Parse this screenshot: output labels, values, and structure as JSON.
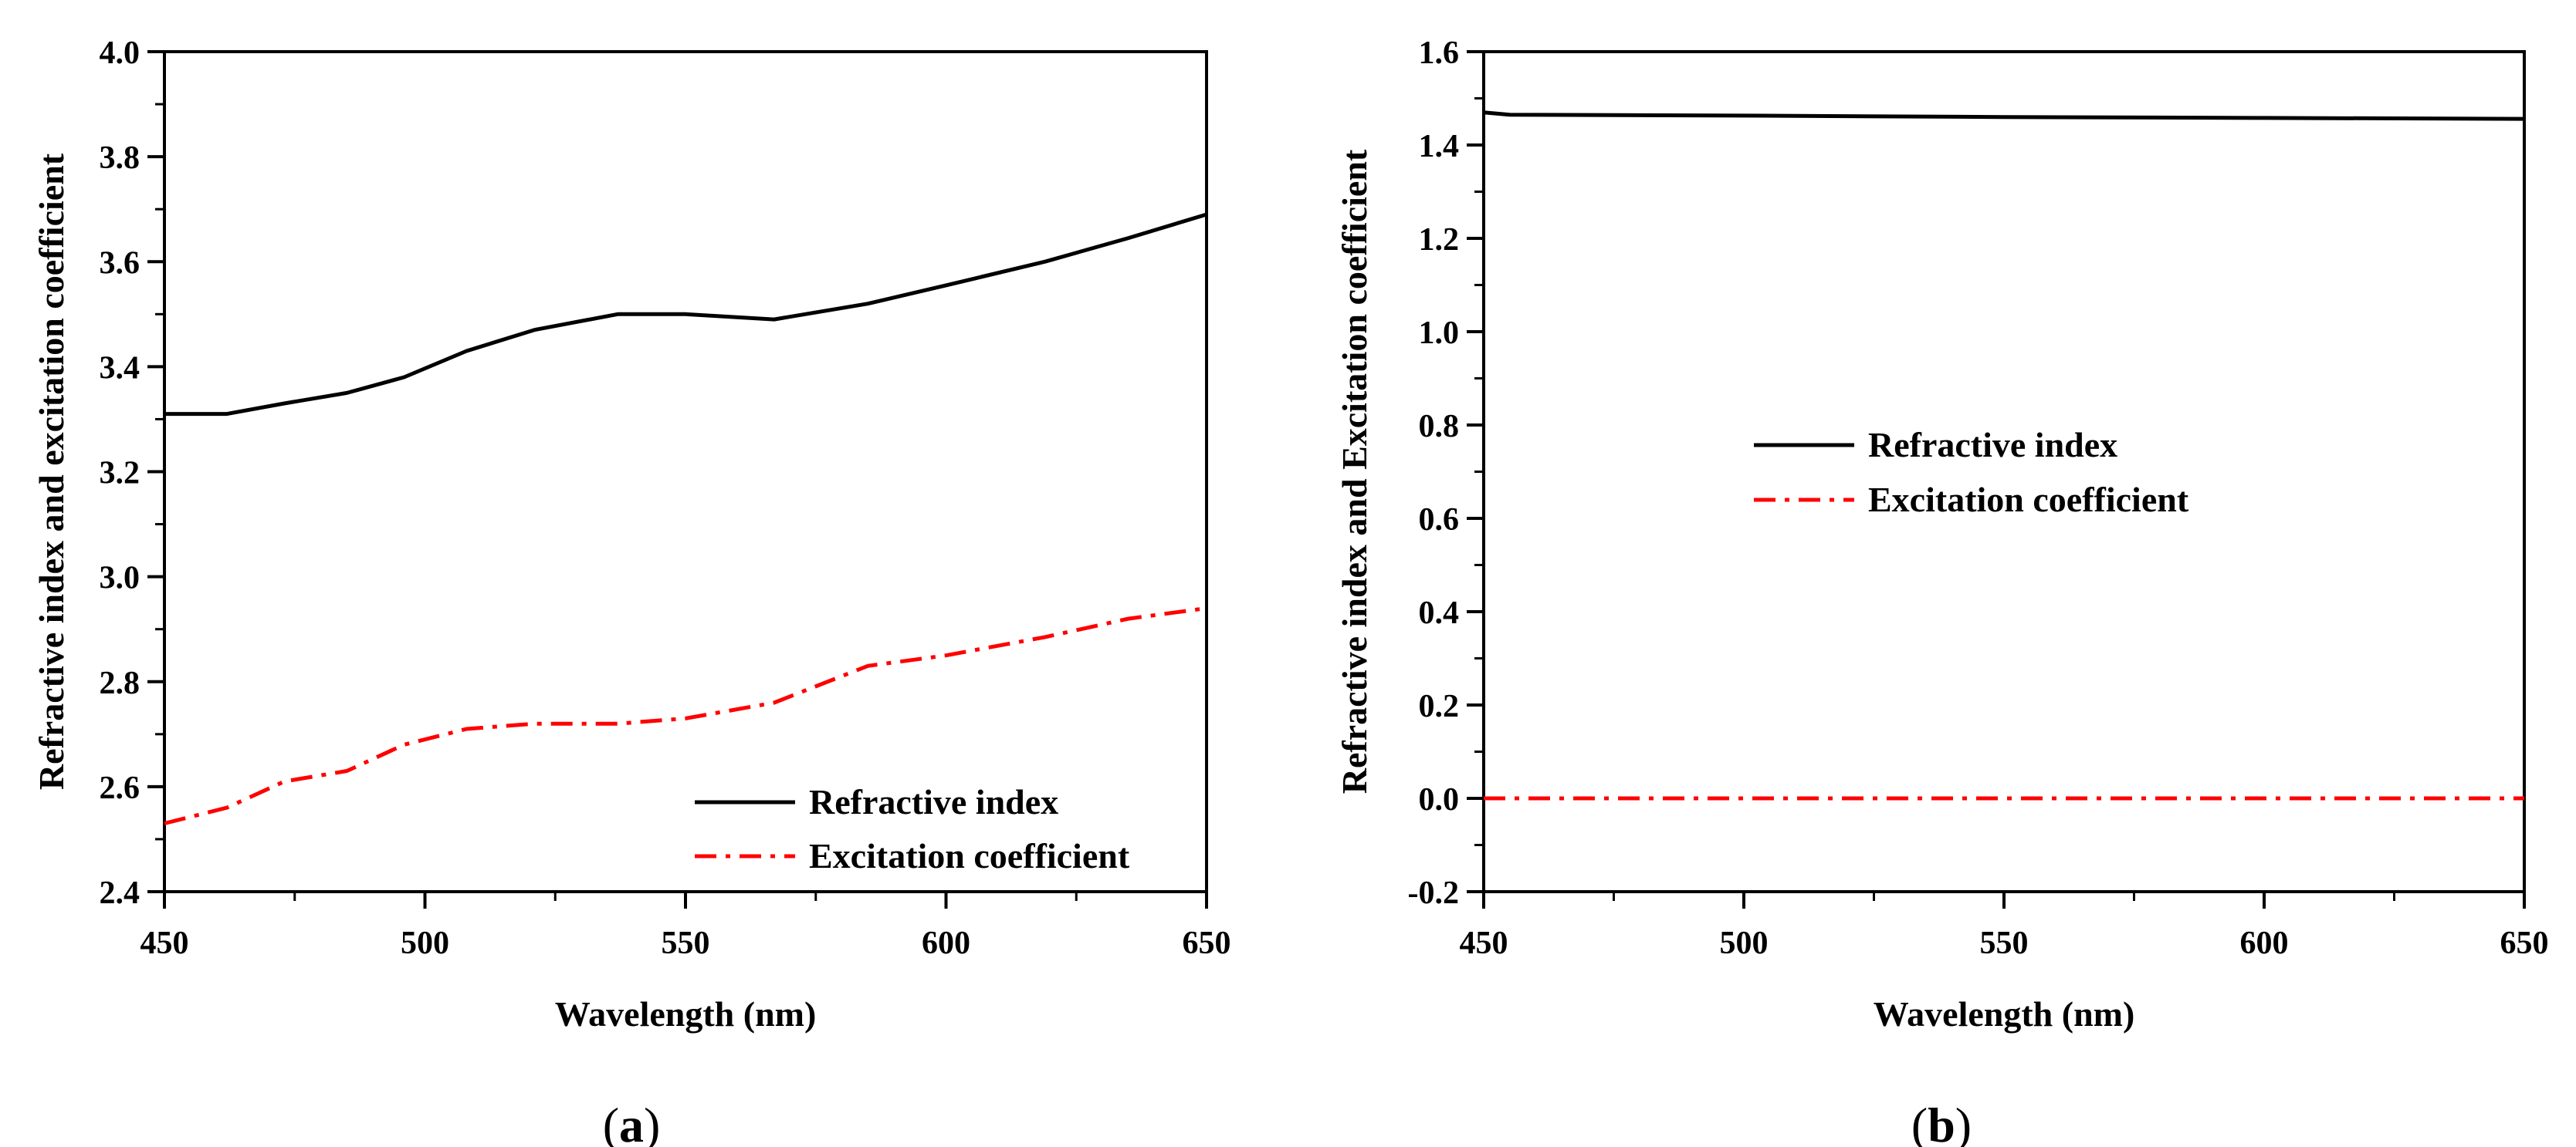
{
  "chart_data": [
    {
      "type": "line",
      "panel_label": {
        "open": "(",
        "letter": "a",
        "close": ")"
      },
      "xlabel": "Wavelength (nm)",
      "ylabel": "Refractive index and excitation coefficient",
      "xlim": [
        450,
        650
      ],
      "ylim": [
        2.4,
        4.0
      ],
      "xticks": [
        "450",
        "500",
        "550",
        "600",
        "650"
      ],
      "yticks": [
        "2.4",
        "2.6",
        "2.8",
        "3.0",
        "3.2",
        "3.4",
        "3.6",
        "3.8",
        "4.0"
      ],
      "legend_position": "bottom-right",
      "series": [
        {
          "name": "Refractive index",
          "color": "#000000",
          "style": "solid",
          "x": [
            450,
            462,
            473,
            485,
            496,
            508,
            521,
            537,
            550,
            567,
            585,
            600,
            619,
            635,
            650
          ],
          "y": [
            3.31,
            3.31,
            3.33,
            3.35,
            3.38,
            3.43,
            3.47,
            3.5,
            3.5,
            3.49,
            3.52,
            3.555,
            3.6,
            3.645,
            3.69
          ]
        },
        {
          "name": "Excitation coefficient",
          "color": "#ff0000",
          "style": "dashdot",
          "x": [
            450,
            462,
            473,
            485,
            496,
            508,
            521,
            537,
            550,
            567,
            585,
            600,
            619,
            635,
            650
          ],
          "y": [
            2.53,
            2.56,
            2.61,
            2.63,
            2.68,
            2.71,
            2.72,
            2.72,
            2.73,
            2.76,
            2.83,
            2.85,
            2.885,
            2.92,
            2.94
          ]
        }
      ]
    },
    {
      "type": "line",
      "panel_label": {
        "open": "(",
        "letter": "b",
        "close": ")"
      },
      "xlabel": "Wavelength (nm)",
      "ylabel": "Refractive index and Excitation coefficient",
      "xlim": [
        450,
        650
      ],
      "ylim": [
        -0.2,
        1.6
      ],
      "xticks": [
        "450",
        "500",
        "550",
        "600",
        "650"
      ],
      "yticks": [
        "-0.2",
        "0.0",
        "0.2",
        "0.4",
        "0.6",
        "0.8",
        "1.0",
        "1.2",
        "1.4",
        "1.6"
      ],
      "legend_position": "center-left",
      "series": [
        {
          "name": "Refractive index",
          "color": "#000000",
          "style": "solid",
          "x": [
            450,
            455,
            500,
            550,
            600,
            650
          ],
          "y": [
            1.47,
            1.465,
            1.463,
            1.46,
            1.458,
            1.456
          ]
        },
        {
          "name": "Excitation coefficient",
          "color": "#ff0000",
          "style": "dashdot",
          "x": [
            450,
            500,
            550,
            600,
            650
          ],
          "y": [
            0.0,
            0.0,
            0.0,
            0.0,
            0.0
          ]
        }
      ]
    }
  ]
}
